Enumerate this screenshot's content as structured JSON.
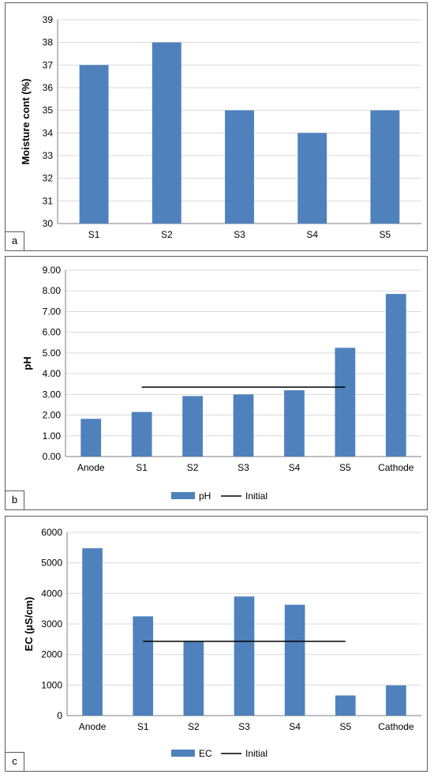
{
  "colors": {
    "bar": "#4f81bd",
    "initial_line": "#000000",
    "grid": "#d9d9d9",
    "axis": "#7f7f7f"
  },
  "panels": [
    {
      "letter": "a"
    },
    {
      "letter": "b"
    },
    {
      "letter": "c"
    }
  ],
  "chart_data": [
    {
      "type": "bar",
      "categories": [
        "S1",
        "S2",
        "S3",
        "S4",
        "S5"
      ],
      "series": [
        {
          "name": "",
          "values": [
            37,
            38,
            35,
            34,
            35
          ]
        }
      ],
      "title": "",
      "xlabel": "",
      "ylabel": "Moisture cont (%)",
      "ylim": [
        30,
        39
      ],
      "yticks": [
        "30",
        "31",
        "32",
        "33",
        "34",
        "35",
        "36",
        "37",
        "38",
        "39"
      ],
      "grid": true,
      "legend": "none"
    },
    {
      "type": "bar",
      "categories": [
        "Anode",
        "S1",
        "S2",
        "S3",
        "S4",
        "S5",
        "Cathode"
      ],
      "series": [
        {
          "name": "pH",
          "values": [
            1.82,
            2.15,
            2.92,
            3.0,
            3.2,
            5.25,
            7.85
          ]
        }
      ],
      "reference_line": {
        "name": "Initial",
        "value": 3.35,
        "from": "S1",
        "to": "S5"
      },
      "title": "",
      "xlabel": "",
      "ylabel": "pH",
      "ylim": [
        0,
        9
      ],
      "yticks": [
        "0.00",
        "1.00",
        "2.00",
        "3.00",
        "4.00",
        "5.00",
        "6.00",
        "7.00",
        "8.00",
        "9.00"
      ],
      "grid": true,
      "legend": "bottom"
    },
    {
      "type": "bar",
      "categories": [
        "Anode",
        "S1",
        "S2",
        "S3",
        "S4",
        "S5",
        "Cathode"
      ],
      "series": [
        {
          "name": "EC",
          "values": [
            5480,
            3250,
            2430,
            3900,
            3630,
            660,
            990
          ]
        }
      ],
      "reference_line": {
        "name": "Initial",
        "value": 2430,
        "from": "S1",
        "to": "S5"
      },
      "title": "",
      "xlabel": "",
      "ylabel": "EC (µS/cm)",
      "ylim": [
        0,
        6000
      ],
      "yticks": [
        "0",
        "1000",
        "2000",
        "3000",
        "4000",
        "5000",
        "6000"
      ],
      "grid": true,
      "legend": "bottom"
    }
  ]
}
